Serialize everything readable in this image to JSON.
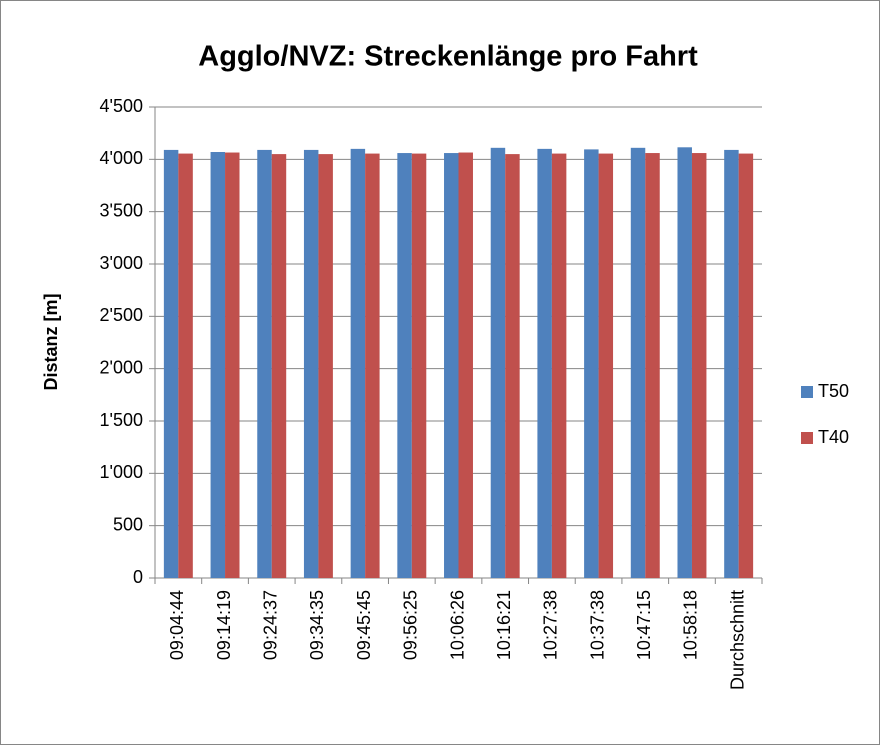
{
  "chart_data": {
    "type": "bar",
    "title": "Agglo/NVZ: Streckenlänge pro Fahrt",
    "y_label": "Distanz [m]",
    "categories": [
      "09:04:44",
      "09:14:19",
      "09:24:37",
      "09:34:35",
      "09:45:45",
      "09:56:25",
      "10:06:26",
      "10:16:21",
      "10:27:38",
      "10:37:38",
      "10:47:15",
      "10:58:18",
      "Durchschnitt"
    ],
    "series": [
      {
        "name": "T50",
        "color": "#4f81bd",
        "values": [
          4090,
          4070,
          4090,
          4090,
          4100,
          4060,
          4060,
          4110,
          4100,
          4095,
          4110,
          4115,
          4090
        ]
      },
      {
        "name": "T40",
        "color": "#c0504d",
        "values": [
          4055,
          4065,
          4050,
          4050,
          4055,
          4055,
          4065,
          4050,
          4055,
          4055,
          4060,
          4060,
          4055
        ]
      }
    ],
    "ylim": [
      0,
      4500
    ],
    "yticks": [
      0,
      500,
      {
        "value": 1000,
        "label": "1'000"
      },
      {
        "value": 1500,
        "label": "1'500"
      },
      {
        "value": 2000,
        "label": "2'000"
      },
      {
        "value": 2500,
        "label": "2'500"
      },
      {
        "value": 3000,
        "label": "3'000"
      },
      {
        "value": 3500,
        "label": "3'500"
      },
      {
        "value": 4000,
        "label": "4'000"
      },
      {
        "value": 4500,
        "label": "4'500"
      }
    ],
    "grid": true,
    "legend": "right"
  }
}
